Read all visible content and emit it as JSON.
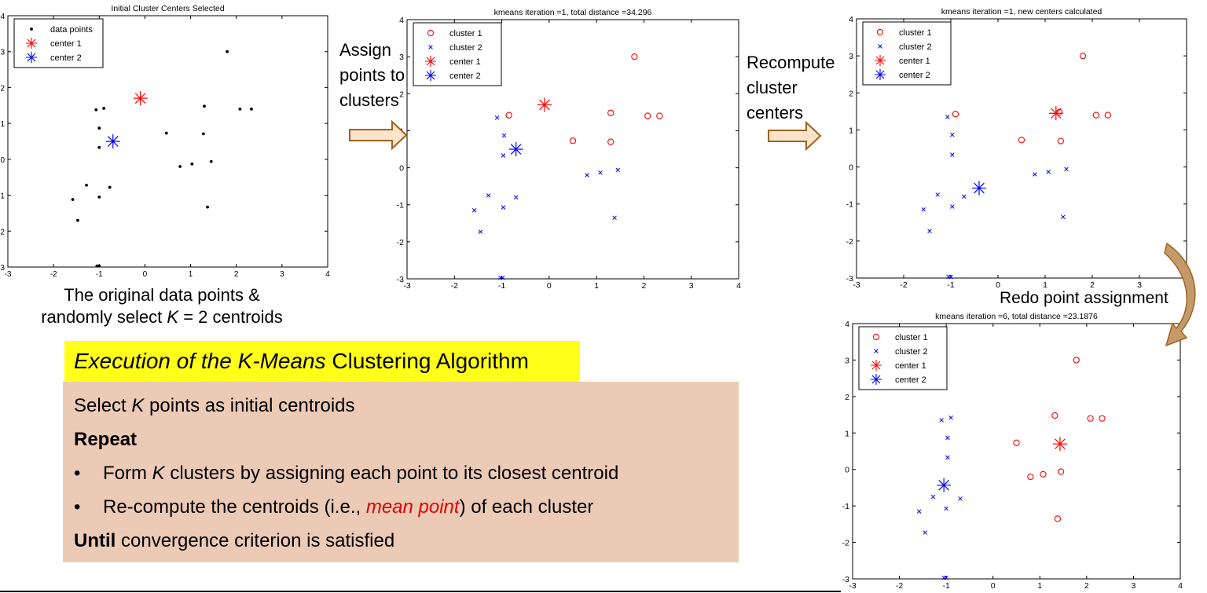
{
  "charts": [
    {
      "title": "Initial Cluster Centers Selected",
      "legend": [
        {
          "label": "data points",
          "marker": "dot",
          "color": "#000000"
        },
        {
          "label": "center 1",
          "marker": "star",
          "color": "#ff0000"
        },
        {
          "label": "center 2",
          "marker": "star",
          "color": "#0000ff"
        }
      ]
    },
    {
      "title": "kmeans iteration =1, total distance =34.296",
      "legend": [
        {
          "label": "cluster 1",
          "marker": "circle",
          "color": "#ff0000"
        },
        {
          "label": "cluster 2",
          "marker": "x",
          "color": "#0000ff"
        },
        {
          "label": "center 1",
          "marker": "star",
          "color": "#ff0000"
        },
        {
          "label": "center 2",
          "marker": "star",
          "color": "#0000ff"
        }
      ]
    },
    {
      "title": "kmeans iteration =1, new centers calculated",
      "legend": [
        {
          "label": "cluster 1",
          "marker": "circle",
          "color": "#ff0000"
        },
        {
          "label": "cluster 2",
          "marker": "x",
          "color": "#0000ff"
        },
        {
          "label": "center 1",
          "marker": "star",
          "color": "#ff0000"
        },
        {
          "label": "center 2",
          "marker": "star",
          "color": "#0000ff"
        }
      ]
    },
    {
      "title": "kmeans iteration =6, total distance =23.1876",
      "legend": [
        {
          "label": "cluster 1",
          "marker": "circle",
          "color": "#ff0000"
        },
        {
          "label": "cluster 2",
          "marker": "x",
          "color": "#0000ff"
        },
        {
          "label": "center 1",
          "marker": "star",
          "color": "#ff0000"
        },
        {
          "label": "center 2",
          "marker": "star",
          "color": "#0000ff"
        }
      ]
    }
  ],
  "chart_data": [
    {
      "type": "scatter",
      "title": "Initial Cluster Centers Selected",
      "xlim": [
        -3,
        4
      ],
      "ylim": [
        -3,
        4
      ],
      "xticks": [
        "-3",
        "-2",
        "-1",
        "0",
        "1",
        "2",
        "3",
        "4"
      ],
      "yticks": [
        "-3",
        "-2",
        "-1",
        "0",
        "1",
        "2",
        "3",
        "4"
      ],
      "legend_position": "top-left",
      "series": [
        {
          "name": "data points",
          "marker": "dot",
          "color": "#000000",
          "points": [
            [
              1.8,
              3.0
            ],
            [
              -1.07,
              1.38
            ],
            [
              -0.9,
              1.42
            ],
            [
              1.3,
              1.48
            ],
            [
              2.08,
              1.4
            ],
            [
              2.33,
              1.4
            ],
            [
              -1.0,
              0.87
            ],
            [
              0.47,
              0.73
            ],
            [
              1.28,
              0.71
            ],
            [
              -1.0,
              0.33
            ],
            [
              0.77,
              -0.2
            ],
            [
              1.03,
              -0.13
            ],
            [
              1.45,
              -0.06
            ],
            [
              -1.28,
              -0.72
            ],
            [
              -0.77,
              -0.78
            ],
            [
              -1.58,
              -1.12
            ],
            [
              -1.0,
              -1.05
            ],
            [
              1.37,
              -1.33
            ],
            [
              -1.47,
              -1.7
            ],
            [
              -1.05,
              -2.97
            ],
            [
              -1.0,
              -2.97
            ]
          ]
        },
        {
          "name": "center 1",
          "marker": "star",
          "color": "#ff0000",
          "points": [
            [
              -0.1,
              1.7
            ]
          ]
        },
        {
          "name": "center 2",
          "marker": "star",
          "color": "#0000ff",
          "points": [
            [
              -0.7,
              0.5
            ]
          ]
        }
      ]
    },
    {
      "type": "scatter",
      "title": "kmeans iteration =1, total distance =34.296",
      "xlim": [
        -3,
        4
      ],
      "ylim": [
        -3,
        4
      ],
      "xticks": [
        "-3",
        "-2",
        "-1",
        "0",
        "1",
        "2",
        "3",
        "4"
      ],
      "yticks": [
        "-3",
        "-2",
        "-1",
        "0",
        "1",
        "2",
        "3",
        "4"
      ],
      "legend_position": "top-left",
      "series": [
        {
          "name": "cluster 1",
          "marker": "circle",
          "color": "#ff0000",
          "points": [
            [
              1.8,
              3.0
            ],
            [
              -0.85,
              1.42
            ],
            [
              1.3,
              1.48
            ],
            [
              2.08,
              1.4
            ],
            [
              2.33,
              1.4
            ],
            [
              0.5,
              0.73
            ],
            [
              1.3,
              0.7
            ]
          ]
        },
        {
          "name": "cluster 2",
          "marker": "x",
          "color": "#0000ff",
          "points": [
            [
              -1.1,
              1.35
            ],
            [
              -0.95,
              0.87
            ],
            [
              -0.97,
              0.33
            ],
            [
              0.8,
              -0.2
            ],
            [
              1.08,
              -0.13
            ],
            [
              1.45,
              -0.06
            ],
            [
              -1.28,
              -0.75
            ],
            [
              -0.7,
              -0.8
            ],
            [
              -1.58,
              -1.15
            ],
            [
              -0.97,
              -1.07
            ],
            [
              1.38,
              -1.35
            ],
            [
              -1.45,
              -1.73
            ],
            [
              -1.03,
              -2.97
            ],
            [
              -0.98,
              -2.97
            ]
          ]
        },
        {
          "name": "center 1",
          "marker": "star",
          "color": "#ff0000",
          "points": [
            [
              -0.1,
              1.7
            ]
          ]
        },
        {
          "name": "center 2",
          "marker": "star",
          "color": "#0000ff",
          "points": [
            [
              -0.7,
              0.5
            ]
          ]
        }
      ]
    },
    {
      "type": "scatter",
      "title": "kmeans iteration =1, new centers calculated",
      "xlim": [
        -3,
        4
      ],
      "ylim": [
        -3,
        4
      ],
      "xticks": [
        "-3",
        "-2",
        "-1",
        "0",
        "1",
        "2",
        "3",
        "4"
      ],
      "yticks": [
        "-3",
        "-2",
        "-1",
        "0",
        "1",
        "2",
        "3",
        "4"
      ],
      "legend_position": "top-left",
      "series": [
        {
          "name": "cluster 1",
          "marker": "circle",
          "color": "#ff0000",
          "points": [
            [
              1.8,
              3.0
            ],
            [
              -0.9,
              1.43
            ],
            [
              1.3,
              1.48
            ],
            [
              2.08,
              1.4
            ],
            [
              2.33,
              1.4
            ],
            [
              0.5,
              0.73
            ],
            [
              1.33,
              0.7
            ]
          ]
        },
        {
          "name": "cluster 2",
          "marker": "x",
          "color": "#0000ff",
          "points": [
            [
              -1.07,
              1.35
            ],
            [
              -0.97,
              0.87
            ],
            [
              -0.97,
              0.33
            ],
            [
              0.78,
              -0.2
            ],
            [
              1.07,
              -0.13
            ],
            [
              1.45,
              -0.06
            ],
            [
              -1.28,
              -0.75
            ],
            [
              -0.72,
              -0.8
            ],
            [
              -1.58,
              -1.15
            ],
            [
              -0.97,
              -1.07
            ],
            [
              1.38,
              -1.35
            ],
            [
              -1.45,
              -1.73
            ],
            [
              -1.05,
              -2.97
            ],
            [
              -1.0,
              -2.97
            ]
          ]
        },
        {
          "name": "center 1",
          "marker": "star",
          "color": "#ff0000",
          "points": [
            [
              1.23,
              1.45
            ]
          ]
        },
        {
          "name": "center 2",
          "marker": "star",
          "color": "#0000ff",
          "points": [
            [
              -0.4,
              -0.57
            ]
          ]
        }
      ]
    },
    {
      "type": "scatter",
      "title": "kmeans iteration =6, total distance =23.1876",
      "xlim": [
        -3,
        4
      ],
      "ylim": [
        -3,
        4
      ],
      "xticks": [
        "-3",
        "-2",
        "-1",
        "0",
        "1",
        "2",
        "3",
        "4"
      ],
      "yticks": [
        "-3",
        "-2",
        "-1",
        "0",
        "1",
        "2",
        "3",
        "4"
      ],
      "legend_position": "top-left",
      "series": [
        {
          "name": "cluster 1",
          "marker": "circle",
          "color": "#ff0000",
          "points": [
            [
              1.78,
              3.0
            ],
            [
              1.32,
              1.48
            ],
            [
              2.08,
              1.4
            ],
            [
              2.33,
              1.4
            ],
            [
              0.5,
              0.73
            ],
            [
              0.8,
              -0.2
            ],
            [
              1.07,
              -0.13
            ],
            [
              1.45,
              -0.06
            ],
            [
              1.38,
              -1.35
            ]
          ]
        },
        {
          "name": "cluster 2",
          "marker": "x",
          "color": "#0000ff",
          "points": [
            [
              -1.1,
              1.35
            ],
            [
              -0.9,
              1.42
            ],
            [
              -0.97,
              0.87
            ],
            [
              -0.97,
              0.33
            ],
            [
              -1.28,
              -0.75
            ],
            [
              -0.7,
              -0.8
            ],
            [
              -1.58,
              -1.15
            ],
            [
              -1.0,
              -1.07
            ],
            [
              -1.45,
              -1.73
            ],
            [
              -1.05,
              -2.97
            ],
            [
              -1.0,
              -2.97
            ]
          ]
        },
        {
          "name": "center 1",
          "marker": "star",
          "color": "#ff0000",
          "points": [
            [
              1.43,
              0.7
            ]
          ]
        },
        {
          "name": "center 2",
          "marker": "star",
          "color": "#0000ff",
          "points": [
            [
              -1.05,
              -0.43
            ]
          ]
        }
      ]
    }
  ],
  "labels": {
    "assign": "Assign\npoints to\nclusters",
    "recompute": "Recompute\ncluster\ncenters",
    "redo": "Redo point assignment"
  },
  "caption": {
    "line1": "The original data points &",
    "line2_pre": "randomly select ",
    "line2_k": "K",
    "line2_post": " = 2 centroids"
  },
  "algorithm": {
    "title_italic": "Execution of the K-Means",
    "title_rest": " Clustering Algorithm",
    "line1_pre": "Select ",
    "line1_k": "K",
    "line1_post": " points as initial centroids",
    "repeat": "Repeat",
    "bullet_char": "•",
    "bullet1_pre": "Form ",
    "bullet1_k": "K",
    "bullet1_post": " clusters by assigning each point to its closest centroid",
    "bullet2_pre": "Re-compute the centroids (i.e., ",
    "bullet2_em": "mean point",
    "bullet2_post": ") of each cluster",
    "until_bold": "Until",
    "until_rest": " convergence criterion is satisfied"
  },
  "colors": {
    "arrow_fill": "#fbe3cc",
    "arrow_stroke": "#a0621e",
    "curved_arrow_fill": "#c59a6a",
    "highlight": "#ffff19",
    "box_bg": "#ebcab6",
    "emphasis": "#e00000"
  }
}
